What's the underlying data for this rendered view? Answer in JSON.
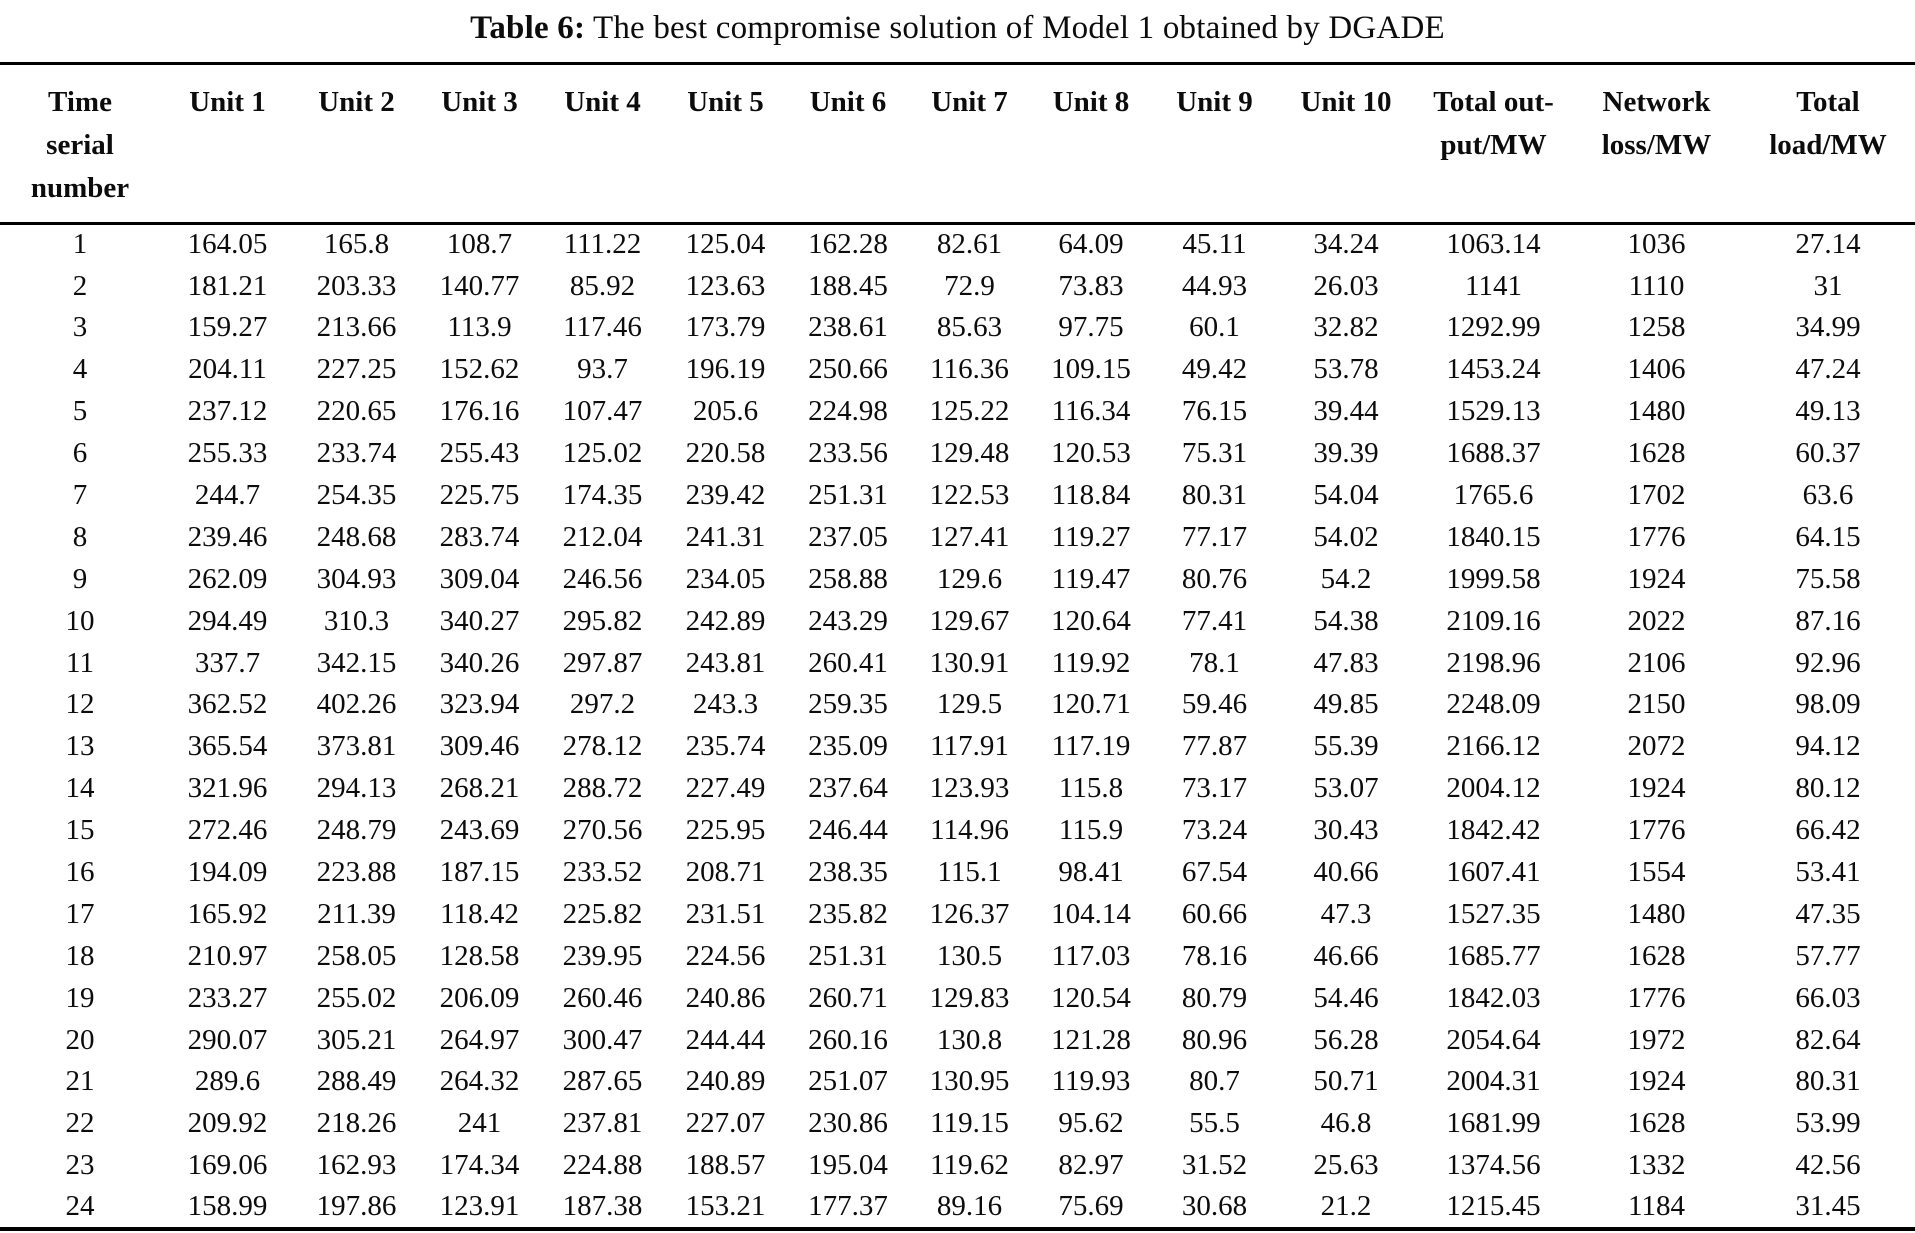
{
  "caption": {
    "label": "Table 6:",
    "text": " The best compromise solution of Model 1 obtained by DGADE"
  },
  "table": {
    "headers": [
      "Time\nserial\nnumber",
      "Unit 1",
      "Unit 2",
      "Unit 3",
      "Unit 4",
      "Unit 5",
      "Unit 6",
      "Unit 7",
      "Unit 8",
      "Unit 9",
      "Unit 10",
      "Total out-\nput/MW",
      "Network\nloss/MW",
      "Total\nload/MW"
    ],
    "rows": [
      [
        "1",
        "164.05",
        "165.8",
        "108.7",
        "111.22",
        "125.04",
        "162.28",
        "82.61",
        "64.09",
        "45.11",
        "34.24",
        "1063.14",
        "1036",
        "27.14"
      ],
      [
        "2",
        "181.21",
        "203.33",
        "140.77",
        "85.92",
        "123.63",
        "188.45",
        "72.9",
        "73.83",
        "44.93",
        "26.03",
        "1141",
        "1110",
        "31"
      ],
      [
        "3",
        "159.27",
        "213.66",
        "113.9",
        "117.46",
        "173.79",
        "238.61",
        "85.63",
        "97.75",
        "60.1",
        "32.82",
        "1292.99",
        "1258",
        "34.99"
      ],
      [
        "4",
        "204.11",
        "227.25",
        "152.62",
        "93.7",
        "196.19",
        "250.66",
        "116.36",
        "109.15",
        "49.42",
        "53.78",
        "1453.24",
        "1406",
        "47.24"
      ],
      [
        "5",
        "237.12",
        "220.65",
        "176.16",
        "107.47",
        "205.6",
        "224.98",
        "125.22",
        "116.34",
        "76.15",
        "39.44",
        "1529.13",
        "1480",
        "49.13"
      ],
      [
        "6",
        "255.33",
        "233.74",
        "255.43",
        "125.02",
        "220.58",
        "233.56",
        "129.48",
        "120.53",
        "75.31",
        "39.39",
        "1688.37",
        "1628",
        "60.37"
      ],
      [
        "7",
        "244.7",
        "254.35",
        "225.75",
        "174.35",
        "239.42",
        "251.31",
        "122.53",
        "118.84",
        "80.31",
        "54.04",
        "1765.6",
        "1702",
        "63.6"
      ],
      [
        "8",
        "239.46",
        "248.68",
        "283.74",
        "212.04",
        "241.31",
        "237.05",
        "127.41",
        "119.27",
        "77.17",
        "54.02",
        "1840.15",
        "1776",
        "64.15"
      ],
      [
        "9",
        "262.09",
        "304.93",
        "309.04",
        "246.56",
        "234.05",
        "258.88",
        "129.6",
        "119.47",
        "80.76",
        "54.2",
        "1999.58",
        "1924",
        "75.58"
      ],
      [
        "10",
        "294.49",
        "310.3",
        "340.27",
        "295.82",
        "242.89",
        "243.29",
        "129.67",
        "120.64",
        "77.41",
        "54.38",
        "2109.16",
        "2022",
        "87.16"
      ],
      [
        "11",
        "337.7",
        "342.15",
        "340.26",
        "297.87",
        "243.81",
        "260.41",
        "130.91",
        "119.92",
        "78.1",
        "47.83",
        "2198.96",
        "2106",
        "92.96"
      ],
      [
        "12",
        "362.52",
        "402.26",
        "323.94",
        "297.2",
        "243.3",
        "259.35",
        "129.5",
        "120.71",
        "59.46",
        "49.85",
        "2248.09",
        "2150",
        "98.09"
      ],
      [
        "13",
        "365.54",
        "373.81",
        "309.46",
        "278.12",
        "235.74",
        "235.09",
        "117.91",
        "117.19",
        "77.87",
        "55.39",
        "2166.12",
        "2072",
        "94.12"
      ],
      [
        "14",
        "321.96",
        "294.13",
        "268.21",
        "288.72",
        "227.49",
        "237.64",
        "123.93",
        "115.8",
        "73.17",
        "53.07",
        "2004.12",
        "1924",
        "80.12"
      ],
      [
        "15",
        "272.46",
        "248.79",
        "243.69",
        "270.56",
        "225.95",
        "246.44",
        "114.96",
        "115.9",
        "73.24",
        "30.43",
        "1842.42",
        "1776",
        "66.42"
      ],
      [
        "16",
        "194.09",
        "223.88",
        "187.15",
        "233.52",
        "208.71",
        "238.35",
        "115.1",
        "98.41",
        "67.54",
        "40.66",
        "1607.41",
        "1554",
        "53.41"
      ],
      [
        "17",
        "165.92",
        "211.39",
        "118.42",
        "225.82",
        "231.51",
        "235.82",
        "126.37",
        "104.14",
        "60.66",
        "47.3",
        "1527.35",
        "1480",
        "47.35"
      ],
      [
        "18",
        "210.97",
        "258.05",
        "128.58",
        "239.95",
        "224.56",
        "251.31",
        "130.5",
        "117.03",
        "78.16",
        "46.66",
        "1685.77",
        "1628",
        "57.77"
      ],
      [
        "19",
        "233.27",
        "255.02",
        "206.09",
        "260.46",
        "240.86",
        "260.71",
        "129.83",
        "120.54",
        "80.79",
        "54.46",
        "1842.03",
        "1776",
        "66.03"
      ],
      [
        "20",
        "290.07",
        "305.21",
        "264.97",
        "300.47",
        "244.44",
        "260.16",
        "130.8",
        "121.28",
        "80.96",
        "56.28",
        "2054.64",
        "1972",
        "82.64"
      ],
      [
        "21",
        "289.6",
        "288.49",
        "264.32",
        "287.65",
        "240.89",
        "251.07",
        "130.95",
        "119.93",
        "80.7",
        "50.71",
        "2004.31",
        "1924",
        "80.31"
      ],
      [
        "22",
        "209.92",
        "218.26",
        "241",
        "237.81",
        "227.07",
        "230.86",
        "119.15",
        "95.62",
        "55.5",
        "46.8",
        "1681.99",
        "1628",
        "53.99"
      ],
      [
        "23",
        "169.06",
        "162.93",
        "174.34",
        "224.88",
        "188.57",
        "195.04",
        "119.62",
        "82.97",
        "31.52",
        "25.63",
        "1374.56",
        "1332",
        "42.56"
      ],
      [
        "24",
        "158.99",
        "197.86",
        "123.91",
        "187.38",
        "153.21",
        "177.37",
        "89.16",
        "75.69",
        "30.68",
        "21.2",
        "1215.45",
        "1184",
        "31.45"
      ]
    ]
  }
}
